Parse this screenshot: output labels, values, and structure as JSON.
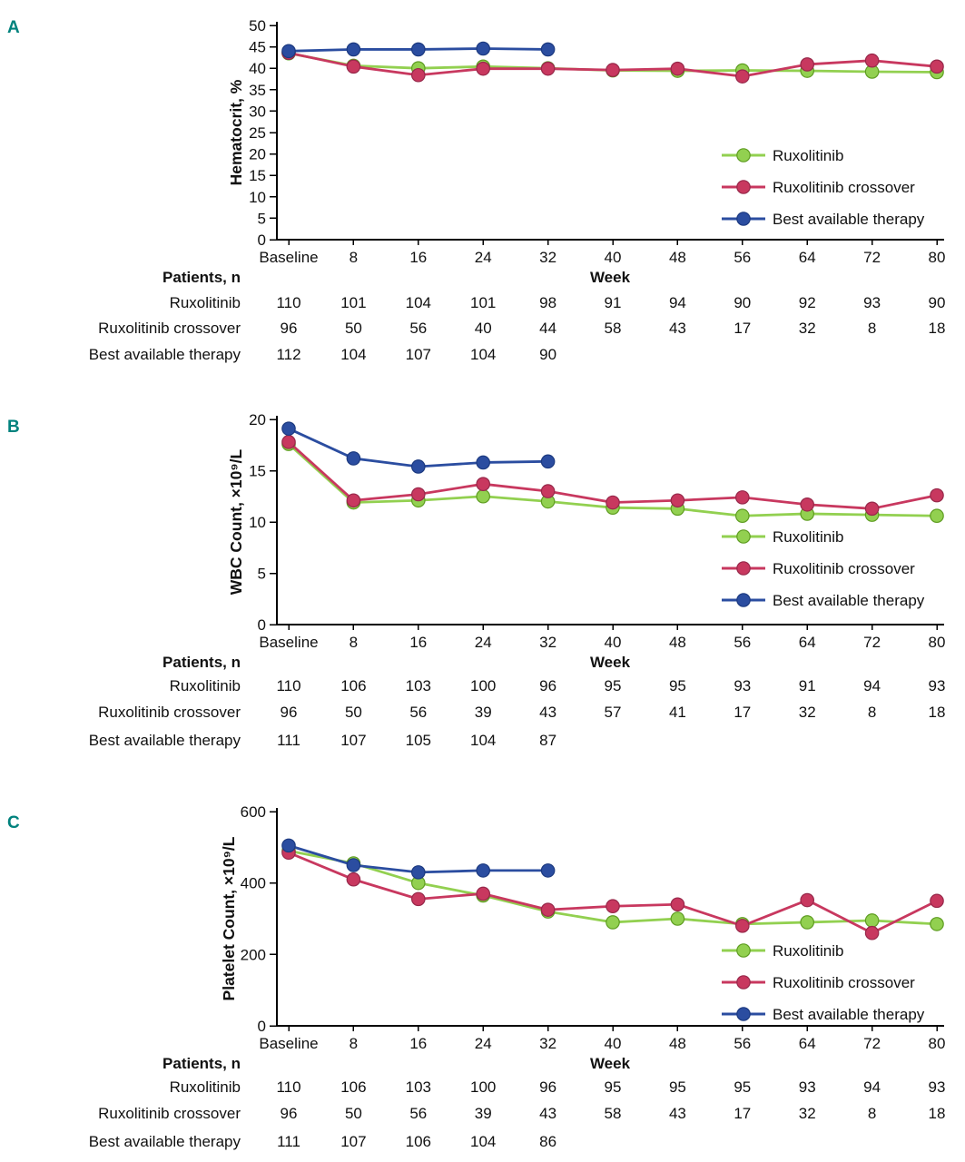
{
  "chart_data": [
    {
      "type": "line",
      "panel_label": "A",
      "ylabel": "Hematocrit, %",
      "xlabel": "Week",
      "patients_header": "Patients, n",
      "ylim": [
        0,
        50
      ],
      "ytick_step": 5,
      "grid": false,
      "legend_position": "inside-right",
      "categories": [
        "Baseline",
        "8",
        "16",
        "24",
        "32",
        "40",
        "48",
        "56",
        "64",
        "72",
        "80"
      ],
      "series": [
        {
          "name": "Ruxolitinib",
          "color": "#92d050",
          "marker_edge": "#5e9c21",
          "values": [
            43.5,
            40.6,
            40.0,
            40.4,
            40.0,
            39.5,
            39.4,
            39.5,
            39.4,
            39.2,
            39.1
          ]
        },
        {
          "name": "Ruxolitinib crossover",
          "color": "#c8385f",
          "marker_edge": "#97284a",
          "values": [
            43.6,
            40.4,
            38.4,
            39.9,
            39.9,
            39.6,
            39.9,
            38.1,
            40.9,
            41.8,
            40.4
          ]
        },
        {
          "name": "Best available therapy",
          "color": "#2b4da0",
          "marker_edge": "#1c3a80",
          "values": [
            44.0,
            44.4,
            44.4,
            44.6,
            44.4
          ]
        }
      ],
      "patients": [
        {
          "name": "Ruxolitinib",
          "counts": [
            110,
            101,
            104,
            101,
            98,
            91,
            94,
            90,
            92,
            93,
            90
          ]
        },
        {
          "name": "Ruxolitinib crossover",
          "counts": [
            96,
            50,
            56,
            40,
            44,
            58,
            43,
            17,
            32,
            8,
            18
          ]
        },
        {
          "name": "Best available therapy",
          "counts": [
            112,
            104,
            107,
            104,
            90
          ]
        }
      ]
    },
    {
      "type": "line",
      "panel_label": "B",
      "ylabel": "WBC Count, ×10⁹/L",
      "xlabel": "Week",
      "patients_header": "Patients, n",
      "ylim": [
        0,
        20
      ],
      "ytick_step": 5,
      "grid": false,
      "legend_position": "inside-right",
      "categories": [
        "Baseline",
        "8",
        "16",
        "24",
        "32",
        "40",
        "48",
        "56",
        "64",
        "72",
        "80"
      ],
      "series": [
        {
          "name": "Ruxolitinib",
          "color": "#92d050",
          "marker_edge": "#5e9c21",
          "values": [
            17.6,
            11.9,
            12.1,
            12.5,
            12.0,
            11.4,
            11.3,
            10.6,
            10.8,
            10.7,
            10.6
          ]
        },
        {
          "name": "Ruxolitinib crossover",
          "color": "#c8385f",
          "marker_edge": "#97284a",
          "values": [
            17.8,
            12.1,
            12.7,
            13.7,
            13.0,
            11.9,
            12.1,
            12.4,
            11.7,
            11.3,
            12.6
          ]
        },
        {
          "name": "Best available therapy",
          "color": "#2b4da0",
          "marker_edge": "#1c3a80",
          "values": [
            19.1,
            16.2,
            15.4,
            15.8,
            15.9
          ]
        }
      ],
      "patients": [
        {
          "name": "Ruxolitinib",
          "counts": [
            110,
            106,
            103,
            100,
            96,
            95,
            95,
            93,
            91,
            94,
            93
          ]
        },
        {
          "name": "Ruxolitinib crossover",
          "counts": [
            96,
            50,
            56,
            39,
            43,
            57,
            41,
            17,
            32,
            8,
            18
          ]
        },
        {
          "name": "Best available therapy",
          "counts": [
            111,
            107,
            105,
            104,
            87
          ]
        }
      ]
    },
    {
      "type": "line",
      "panel_label": "C",
      "ylabel": "Platelet Count, ×10⁹/L",
      "xlabel": "Week",
      "patients_header": "Patients, n",
      "ylim": [
        0,
        600
      ],
      "ytick_step": 200,
      "grid": false,
      "legend_position": "inside-right",
      "categories": [
        "Baseline",
        "8",
        "16",
        "24",
        "32",
        "40",
        "48",
        "56",
        "64",
        "72",
        "80"
      ],
      "series": [
        {
          "name": "Ruxolitinib",
          "color": "#92d050",
          "marker_edge": "#5e9c21",
          "values": [
            490,
            455,
            400,
            365,
            320,
            290,
            300,
            285,
            290,
            295,
            285
          ]
        },
        {
          "name": "Ruxolitinib crossover",
          "color": "#c8385f",
          "marker_edge": "#97284a",
          "values": [
            485,
            410,
            355,
            370,
            325,
            335,
            340,
            280,
            352,
            260,
            350
          ]
        },
        {
          "name": "Best available therapy",
          "color": "#2b4da0",
          "marker_edge": "#1c3a80",
          "values": [
            505,
            450,
            430,
            435,
            435
          ]
        }
      ],
      "patients": [
        {
          "name": "Ruxolitinib",
          "counts": [
            110,
            106,
            103,
            100,
            96,
            95,
            95,
            95,
            93,
            94,
            93
          ]
        },
        {
          "name": "Ruxolitinib crossover",
          "counts": [
            96,
            50,
            56,
            39,
            43,
            58,
            43,
            17,
            32,
            8,
            18
          ]
        },
        {
          "name": "Best available therapy",
          "counts": [
            111,
            107,
            106,
            104,
            86
          ]
        }
      ]
    }
  ]
}
